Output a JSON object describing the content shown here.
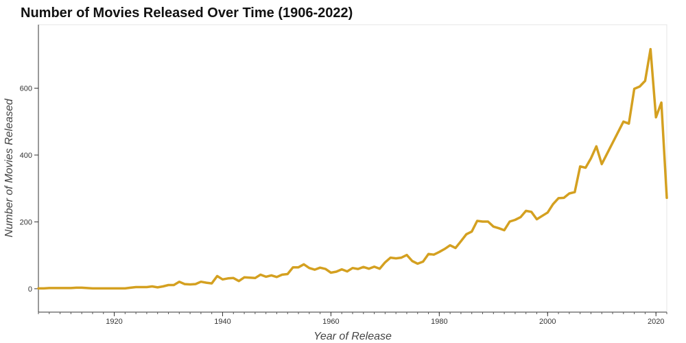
{
  "chart_data": {
    "type": "line",
    "title": "Number of Movies Released Over Time (1906-2022)",
    "xlabel": "Year of Release",
    "ylabel": "Number of Movies Released",
    "xlim": [
      1906,
      2022
    ],
    "ylim": [
      -70,
      790
    ],
    "x_ticks": [
      1920,
      1940,
      1960,
      1980,
      2000,
      2020
    ],
    "x_minor_step": 2,
    "y_ticks": [
      0,
      200,
      400,
      600
    ],
    "grid": false,
    "line_color": "#d4a020",
    "series": [
      {
        "name": "",
        "points": [
          [
            1906,
            1
          ],
          [
            1907,
            1
          ],
          [
            1908,
            2
          ],
          [
            1909,
            2
          ],
          [
            1910,
            2
          ],
          [
            1911,
            2
          ],
          [
            1912,
            2
          ],
          [
            1913,
            3
          ],
          [
            1914,
            3
          ],
          [
            1915,
            2
          ],
          [
            1916,
            1
          ],
          [
            1917,
            1
          ],
          [
            1918,
            1
          ],
          [
            1919,
            1
          ],
          [
            1920,
            1
          ],
          [
            1921,
            1
          ],
          [
            1922,
            1
          ],
          [
            1923,
            3
          ],
          [
            1924,
            5
          ],
          [
            1925,
            5
          ],
          [
            1926,
            5
          ],
          [
            1927,
            7
          ],
          [
            1928,
            4
          ],
          [
            1929,
            7
          ],
          [
            1930,
            11
          ],
          [
            1931,
            11
          ],
          [
            1932,
            21
          ],
          [
            1933,
            14
          ],
          [
            1934,
            13
          ],
          [
            1935,
            14
          ],
          [
            1936,
            21
          ],
          [
            1937,
            18
          ],
          [
            1938,
            16
          ],
          [
            1939,
            38
          ],
          [
            1940,
            28
          ],
          [
            1941,
            31
          ],
          [
            1942,
            32
          ],
          [
            1943,
            23
          ],
          [
            1944,
            34
          ],
          [
            1945,
            33
          ],
          [
            1946,
            32
          ],
          [
            1947,
            42
          ],
          [
            1948,
            36
          ],
          [
            1949,
            40
          ],
          [
            1950,
            35
          ],
          [
            1951,
            42
          ],
          [
            1952,
            44
          ],
          [
            1953,
            64
          ],
          [
            1954,
            64
          ],
          [
            1955,
            73
          ],
          [
            1956,
            62
          ],
          [
            1957,
            57
          ],
          [
            1958,
            63
          ],
          [
            1959,
            59
          ],
          [
            1960,
            48
          ],
          [
            1961,
            51
          ],
          [
            1962,
            58
          ],
          [
            1963,
            52
          ],
          [
            1964,
            62
          ],
          [
            1965,
            59
          ],
          [
            1966,
            65
          ],
          [
            1967,
            60
          ],
          [
            1968,
            66
          ],
          [
            1969,
            60
          ],
          [
            1970,
            79
          ],
          [
            1971,
            93
          ],
          [
            1972,
            91
          ],
          [
            1973,
            93
          ],
          [
            1974,
            101
          ],
          [
            1975,
            83
          ],
          [
            1976,
            75
          ],
          [
            1977,
            81
          ],
          [
            1978,
            104
          ],
          [
            1979,
            102
          ],
          [
            1980,
            110
          ],
          [
            1981,
            119
          ],
          [
            1982,
            130
          ],
          [
            1983,
            122
          ],
          [
            1984,
            142
          ],
          [
            1985,
            163
          ],
          [
            1986,
            171
          ],
          [
            1987,
            203
          ],
          [
            1988,
            201
          ],
          [
            1989,
            201
          ],
          [
            1990,
            186
          ],
          [
            1991,
            181
          ],
          [
            1992,
            175
          ],
          [
            1993,
            201
          ],
          [
            1994,
            206
          ],
          [
            1995,
            214
          ],
          [
            1996,
            233
          ],
          [
            1997,
            230
          ],
          [
            1998,
            208
          ],
          [
            1999,
            218
          ],
          [
            2000,
            228
          ],
          [
            2001,
            253
          ],
          [
            2002,
            271
          ],
          [
            2003,
            272
          ],
          [
            2004,
            285
          ],
          [
            2005,
            289
          ],
          [
            2006,
            366
          ],
          [
            2007,
            362
          ],
          [
            2008,
            390
          ],
          [
            2009,
            426
          ],
          [
            2010,
            373
          ],
          [
            2014,
            500
          ],
          [
            2015,
            494
          ],
          [
            2016,
            598
          ],
          [
            2017,
            605
          ],
          [
            2018,
            622
          ],
          [
            2019,
            717
          ],
          [
            2020,
            513
          ],
          [
            2021,
            557
          ],
          [
            2022,
            272
          ]
        ]
      }
    ]
  }
}
